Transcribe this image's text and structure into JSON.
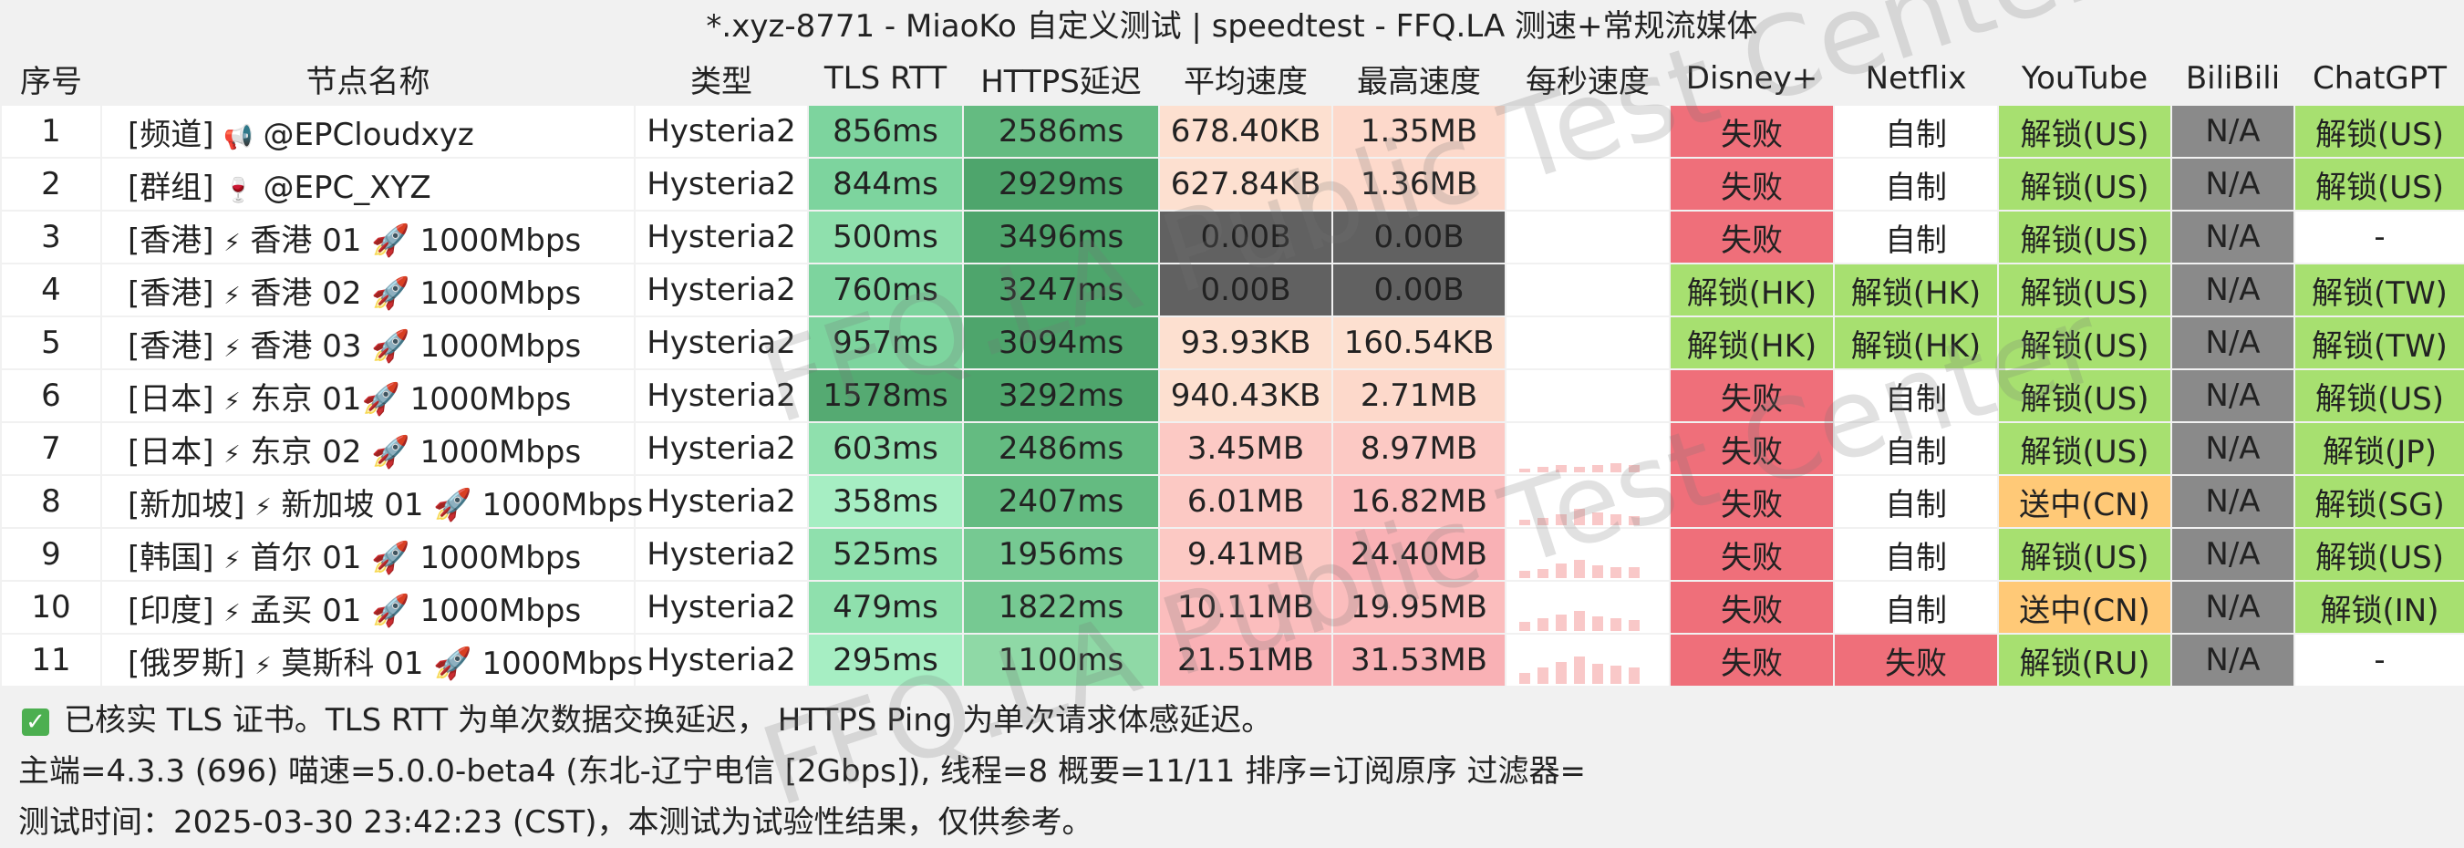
{
  "title": "*.xyz-8771 - MiaoKo 自定义测试 | speedtest - FFQ.LA 测速+常规流媒体",
  "headers": [
    "序号",
    "节点名称",
    "类型",
    "TLS RTT",
    "HTTPS延迟",
    "平均速度",
    "最高速度",
    "每秒速度",
    "Disney+",
    "Netflix",
    "YouTube",
    "BiliBili",
    "ChatGPT"
  ],
  "colors": {
    "fail": "#ef6f7a",
    "unlock": "#a7e070",
    "pending": "#ffc977",
    "na": "#8a8a8a",
    "white": "#ffffff",
    "zero": "#616161"
  },
  "rows": [
    {
      "idx": "1",
      "tag": "[频道]",
      "emoji": "📢",
      "name": "@EPCloudxyz",
      "proto": "Hysteria2",
      "tls": "856ms",
      "https": "2586ms",
      "avg": "678.40KB",
      "max": "1.35MB",
      "spark": [],
      "disney": "失败",
      "netflix": "自制",
      "youtube": "解锁(US)",
      "bili": "N/A",
      "gpt": "解锁(US)"
    },
    {
      "idx": "2",
      "tag": "[群组]",
      "emoji": "🍷",
      "name": "@EPC_XYZ",
      "proto": "Hysteria2",
      "tls": "844ms",
      "https": "2929ms",
      "avg": "627.84KB",
      "max": "1.36MB",
      "spark": [],
      "disney": "失败",
      "netflix": "自制",
      "youtube": "解锁(US)",
      "bili": "N/A",
      "gpt": "解锁(US)"
    },
    {
      "idx": "3",
      "tag": "[香港]",
      "emoji": "⚡",
      "name": "香港 01 🚀 1000Mbps",
      "proto": "Hysteria2",
      "tls": "500ms",
      "https": "3496ms",
      "avg": "0.00B",
      "max": "0.00B",
      "spark": [],
      "disney": "失败",
      "netflix": "自制",
      "youtube": "解锁(US)",
      "bili": "N/A",
      "gpt": "-"
    },
    {
      "idx": "4",
      "tag": "[香港]",
      "emoji": "⚡",
      "name": "香港 02 🚀 1000Mbps",
      "proto": "Hysteria2",
      "tls": "760ms",
      "https": "3247ms",
      "avg": "0.00B",
      "max": "0.00B",
      "spark": [],
      "disney": "解锁(HK)",
      "netflix": "解锁(HK)",
      "youtube": "解锁(US)",
      "bili": "N/A",
      "gpt": "解锁(TW)"
    },
    {
      "idx": "5",
      "tag": "[香港]",
      "emoji": "⚡",
      "name": "香港 03 🚀 1000Mbps",
      "proto": "Hysteria2",
      "tls": "957ms",
      "https": "3094ms",
      "avg": "93.93KB",
      "max": "160.54KB",
      "spark": [],
      "disney": "解锁(HK)",
      "netflix": "解锁(HK)",
      "youtube": "解锁(US)",
      "bili": "N/A",
      "gpt": "解锁(TW)"
    },
    {
      "idx": "6",
      "tag": "[日本]",
      "emoji": "⚡",
      "name": "东京 01🚀 1000Mbps",
      "proto": "Hysteria2",
      "tls": "1578ms",
      "https": "3292ms",
      "avg": "940.43KB",
      "max": "2.71MB",
      "spark": [],
      "disney": "失败",
      "netflix": "自制",
      "youtube": "解锁(US)",
      "bili": "N/A",
      "gpt": "解锁(US)"
    },
    {
      "idx": "7",
      "tag": "[日本]",
      "emoji": "⚡",
      "name": "东京 02 🚀 1000Mbps",
      "proto": "Hysteria2",
      "tls": "603ms",
      "https": "2486ms",
      "avg": "3.45MB",
      "max": "8.97MB",
      "spark": [
        0.1,
        0.15,
        0.2,
        0.15,
        0.2,
        0.25,
        0.2
      ],
      "disney": "失败",
      "netflix": "自制",
      "youtube": "解锁(US)",
      "bili": "N/A",
      "gpt": "解锁(JP)"
    },
    {
      "idx": "8",
      "tag": "[新加坡]",
      "emoji": "⚡",
      "name": "新加坡 01 🚀 1000Mbps",
      "proto": "Hysteria2",
      "tls": "358ms",
      "https": "2407ms",
      "avg": "6.01MB",
      "max": "16.82MB",
      "spark": [
        0.15,
        0.2,
        0.3,
        0.45,
        0.35,
        0.3,
        0.25
      ],
      "disney": "失败",
      "netflix": "自制",
      "youtube": "送中(CN)",
      "bili": "N/A",
      "gpt": "解锁(SG)"
    },
    {
      "idx": "9",
      "tag": "[韩国]",
      "emoji": "⚡",
      "name": "首尔 01 🚀 1000Mbps",
      "proto": "Hysteria2",
      "tls": "525ms",
      "https": "1956ms",
      "avg": "9.41MB",
      "max": "24.40MB",
      "spark": [
        0.2,
        0.25,
        0.4,
        0.5,
        0.35,
        0.3,
        0.3
      ],
      "disney": "失败",
      "netflix": "自制",
      "youtube": "解锁(US)",
      "bili": "N/A",
      "gpt": "解锁(US)"
    },
    {
      "idx": "10",
      "tag": "[印度]",
      "emoji": "⚡",
      "name": "孟买 01 🚀 1000Mbps",
      "proto": "Hysteria2",
      "tls": "479ms",
      "https": "1822ms",
      "avg": "10.11MB",
      "max": "19.95MB",
      "spark": [
        0.25,
        0.35,
        0.45,
        0.55,
        0.4,
        0.35,
        0.3
      ],
      "disney": "失败",
      "netflix": "自制",
      "youtube": "送中(CN)",
      "bili": "N/A",
      "gpt": "解锁(IN)"
    },
    {
      "idx": "11",
      "tag": "[俄罗斯]",
      "emoji": "⚡",
      "name": "莫斯科 01 🚀 1000Mbps",
      "proto": "Hysteria2",
      "tls": "295ms",
      "https": "1100ms",
      "avg": "21.51MB",
      "max": "31.53MB",
      "spark": [
        0.3,
        0.45,
        0.6,
        0.75,
        0.55,
        0.5,
        0.45
      ],
      "disney": "失败",
      "netflix": "失败",
      "youtube": "解锁(RU)",
      "bili": "N/A",
      "gpt": "-"
    }
  ],
  "footer": {
    "note": "已核实 TLS 证书。TLS RTT 为单次数据交换延迟， HTTPS Ping 为单次请求体感延迟。",
    "info": "主端=4.3.3 (696) 喵速=5.0.0-beta4 (东北-辽宁电信 [2Gbps]), 线程=8 概要=11/11 排序=订阅原序 过滤器=",
    "time": "测试时间：2025-03-30 23:42:23 (CST)，本测试为试验性结果，仅供参考。"
  },
  "watermark": "FFQ.LA Public Test Center"
}
